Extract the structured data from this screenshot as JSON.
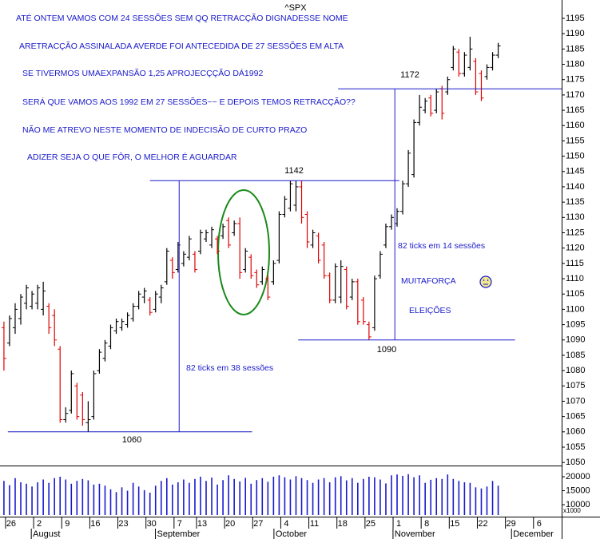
{
  "chart_data": {
    "type": "ohlc",
    "title": "^SPX",
    "x": [
      0,
      1,
      2,
      3,
      4,
      5,
      6,
      7,
      8,
      9,
      10,
      11,
      12,
      13,
      14,
      15,
      16,
      17,
      18,
      19,
      20,
      21,
      22,
      23,
      24,
      25,
      26,
      27,
      28,
      29,
      30,
      31,
      32,
      33,
      34,
      35,
      36,
      37,
      38,
      39,
      40,
      41,
      42,
      43,
      44,
      45,
      46,
      47,
      48,
      49,
      50,
      51,
      52,
      53,
      54,
      55,
      56,
      57,
      58,
      59,
      60,
      61,
      62,
      63,
      64,
      65,
      66,
      67,
      68,
      69,
      70,
      71,
      72,
      73,
      74,
      75,
      76,
      77,
      78,
      79,
      80,
      81,
      82,
      83,
      84,
      85,
      86,
      87,
      88
    ],
    "high": [
      1096,
      1098,
      1102,
      1105,
      1108,
      1106,
      1108,
      1109,
      1102,
      1100,
      1088,
      1068,
      1080,
      1076,
      1073,
      1070,
      1080,
      1087,
      1090,
      1095,
      1097,
      1097,
      1099,
      1102,
      1106,
      1107,
      1104,
      1106,
      1108,
      1120,
      1117,
      1122,
      1119,
      1124,
      1119,
      1126,
      1126,
      1127,
      1124,
      1128,
      1130,
      1129,
      1130,
      1120,
      1118,
      1113,
      1114,
      1111,
      1116,
      1132,
      1137,
      1142,
      1142,
      1142,
      1132,
      1126,
      1125,
      1122,
      1112,
      1115,
      1116,
      1114,
      1110,
      1110,
      1104,
      1096,
      1111,
      1119,
      1128,
      1131,
      1133,
      1142,
      1152,
      1162,
      1170,
      1169,
      1170,
      1172,
      1173,
      1176,
      1186,
      1185,
      1184,
      1189,
      1182,
      1178,
      1180,
      1184,
      1187
    ],
    "low": [
      1080,
      1088,
      1092,
      1095,
      1100,
      1100,
      1100,
      1098,
      1092,
      1088,
      1063,
      1063,
      1066,
      1064,
      1062,
      1060,
      1064,
      1079,
      1083,
      1087,
      1092,
      1093,
      1094,
      1096,
      1100,
      1102,
      1098,
      1099,
      1102,
      1108,
      1110,
      1112,
      1114,
      1116,
      1112,
      1118,
      1122,
      1120,
      1118,
      1123,
      1120,
      1124,
      1110,
      1112,
      1110,
      1107,
      1108,
      1103,
      1108,
      1115,
      1130,
      1132,
      1132,
      1128,
      1120,
      1120,
      1115,
      1110,
      1102,
      1102,
      1102,
      1100,
      1103,
      1095,
      1095,
      1090,
      1093,
      1110,
      1120,
      1126,
      1127,
      1131,
      1140,
      1143,
      1160,
      1164,
      1163,
      1164,
      1162,
      1170,
      1178,
      1176,
      1176,
      1178,
      1170,
      1168,
      1175,
      1178,
      1182
    ],
    "open": [
      1094,
      1089,
      1094,
      1097,
      1102,
      1101,
      1102,
      1100,
      1101,
      1098,
      1087,
      1064,
      1067,
      1075,
      1072,
      1063,
      1065,
      1080,
      1084,
      1088,
      1093,
      1094,
      1095,
      1097,
      1101,
      1104,
      1103,
      1100,
      1104,
      1109,
      1116,
      1113,
      1115,
      1117,
      1118,
      1119,
      1123,
      1121,
      1123,
      1124,
      1129,
      1125,
      1128,
      1113,
      1117,
      1112,
      1109,
      1110,
      1109,
      1116,
      1131,
      1133,
      1134,
      1140,
      1131,
      1121,
      1124,
      1121,
      1111,
      1103,
      1104,
      1113,
      1104,
      1109,
      1103,
      1095,
      1094,
      1111,
      1121,
      1127,
      1128,
      1132,
      1141,
      1144,
      1161,
      1165,
      1169,
      1165,
      1172,
      1171,
      1179,
      1184,
      1177,
      1179,
      1181,
      1177,
      1176,
      1179,
      1183
    ],
    "close": [
      1084,
      1097,
      1100,
      1104,
      1107,
      1105,
      1107,
      1106,
      1094,
      1090,
      1064,
      1066,
      1079,
      1065,
      1064,
      1064,
      1079,
      1086,
      1089,
      1094,
      1096,
      1096,
      1098,
      1101,
      1105,
      1106,
      1099,
      1105,
      1107,
      1119,
      1112,
      1121,
      1118,
      1123,
      1113,
      1125,
      1125,
      1126,
      1119,
      1127,
      1121,
      1128,
      1112,
      1119,
      1111,
      1108,
      1113,
      1104,
      1115,
      1131,
      1136,
      1141,
      1140,
      1130,
      1122,
      1125,
      1116,
      1111,
      1103,
      1114,
      1114,
      1101,
      1109,
      1096,
      1096,
      1091,
      1110,
      1118,
      1127,
      1130,
      1132,
      1141,
      1151,
      1161,
      1166,
      1168,
      1164,
      1171,
      1164,
      1175,
      1185,
      1177,
      1183,
      1185,
      1171,
      1169,
      1179,
      1183,
      1186
    ],
    "volume": [
      18500,
      17000,
      19500,
      18000,
      17500,
      16500,
      18000,
      19000,
      17800,
      19500,
      20000,
      19000,
      17500,
      18500,
      19200,
      18700,
      17200,
      17500,
      16800,
      15500,
      14500,
      16200,
      15000,
      17800,
      16500,
      15200,
      14300,
      16800,
      18500,
      19500,
      17200,
      18000,
      19000,
      17800,
      19200,
      20000,
      18500,
      19700,
      17200,
      18800,
      20500,
      19200,
      18300,
      19600,
      17500,
      18800,
      19500,
      18200,
      20000,
      20500,
      19800,
      19000,
      20200,
      19500,
      18800,
      17800,
      19000,
      19500,
      18000,
      19800,
      20200,
      18700,
      19500,
      17800,
      19200,
      20000,
      19800,
      19000,
      17600,
      20500,
      20800,
      20300,
      20900,
      19800,
      20500,
      17800,
      18900,
      19500,
      19200,
      20800,
      19200,
      18500,
      18000,
      17800,
      16200,
      15800,
      16500,
      18500,
      16800
    ],
    "up_color": "#000000",
    "down_color": "#e00000",
    "volume_color": "#1a1acc",
    "xlim": [
      -0.7,
      99.3
    ],
    "xticks": [
      {
        "value": 1,
        "label": "26"
      },
      {
        "value": 6,
        "label": "2"
      },
      {
        "value": 11,
        "label": "9"
      },
      {
        "value": 16,
        "label": "16"
      },
      {
        "value": 21,
        "label": "23"
      },
      {
        "value": 26,
        "label": "30"
      },
      {
        "value": 31,
        "label": "7"
      },
      {
        "value": 35,
        "label": "13"
      },
      {
        "value": 40,
        "label": "20"
      },
      {
        "value": 45,
        "label": "27"
      },
      {
        "value": 50,
        "label": "4"
      },
      {
        "value": 55,
        "label": "11"
      },
      {
        "value": 60,
        "label": "18"
      },
      {
        "value": 65,
        "label": "25"
      },
      {
        "value": 70,
        "label": "1"
      },
      {
        "value": 75,
        "label": "8"
      },
      {
        "value": 80,
        "label": "15"
      },
      {
        "value": 85,
        "label": "22"
      },
      {
        "value": 90,
        "label": "29"
      },
      {
        "value": 95,
        "label": "6"
      }
    ],
    "month_ticks": [
      {
        "value": 5.3,
        "label": "August"
      },
      {
        "value": 27.4,
        "label": "September"
      },
      {
        "value": 48.5,
        "label": "October"
      },
      {
        "value": 69.7,
        "label": "November"
      },
      {
        "value": 90.8,
        "label": "December"
      }
    ],
    "ylim": [
      1049,
      1201
    ],
    "yticks": [
      1050,
      1055,
      1060,
      1065,
      1070,
      1075,
      1080,
      1085,
      1090,
      1095,
      1100,
      1105,
      1110,
      1115,
      1120,
      1125,
      1130,
      1135,
      1140,
      1145,
      1150,
      1155,
      1160,
      1165,
      1170,
      1175,
      1180,
      1185,
      1190,
      1195
    ],
    "volume_ylim": [
      6300,
      22000
    ],
    "volume_yticks": [
      10000,
      15000,
      20000
    ],
    "volume_unit": "x1000",
    "levels": [
      1060,
      1142,
      1172,
      1090
    ],
    "level_color": "#1a1acc",
    "notes": [
      "ATÉ ONTEM VAMOS COM 24 SESSÕES SEM QQ RETRACÇÃO DIGNADESSE NOME",
      "ARETRACÇÃO ASSINALADA AVERDE FOI ANTECEDIDA DE 27 SESSÕES EM ALTA",
      "SE TIVERMOS UMAEXPANSÃO 1,25 APROJECÇÇÃO DÁ1992",
      "SERÁ QUE VAMOS AOS 1992  EM 27 SESSÕES~~ E DEPOIS TEMOS RETRACÇÃO??",
      "NÃO ME ATREVO NESTE MOMENTO DE INDECISÃO DE CURTO PRAZO",
      "ADIZER SEJA O QUE FÔR, O MELHOR É AGUARDAR",
      "82 ticks em 38 sessões",
      "82 ticks em 14 sessões",
      "MUITAFORÇA",
      "ELEIÇÕES"
    ]
  }
}
